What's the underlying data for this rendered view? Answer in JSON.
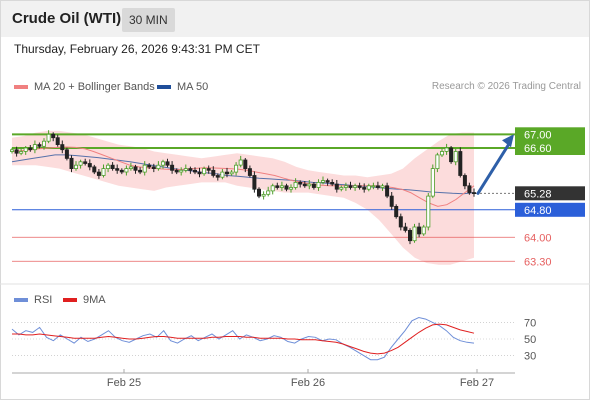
{
  "header": {
    "instrument": "Crude Oil (WTI)",
    "timeframe": "30 MIN",
    "datetime": "Thursday, February 26, 2026 9:43:31 PM CET"
  },
  "legend": {
    "ma20": "MA 20 + Bollinger Bands",
    "ma50": "MA 50",
    "credit": "Research © 2026 Trading Central",
    "rsi": "RSI",
    "rsi_ma": "9MA"
  },
  "colors": {
    "up": "#4d9f2a",
    "ma20": "#f08080",
    "ma50": "#1f4e9a",
    "bollinger": "#fbd6d6",
    "resistance": "#5aa827",
    "pivot": "#2b5fd9",
    "support": "#e66060",
    "last": "#333333",
    "arrow": "#2e5fa8",
    "rsi": "#6f8fd8",
    "rsi_ma": "#e02020"
  },
  "chart_data": [
    {
      "type": "candlestick",
      "title": "Crude Oil (WTI)",
      "timeframe": "30 MIN",
      "ylim": [
        62.9,
        68.0
      ],
      "x_ticks": [
        "Feb 25",
        "Feb 26",
        "Feb 27"
      ],
      "levels": [
        {
          "value": 67.0,
          "label": "67.00",
          "kind": "resistance"
        },
        {
          "value": 66.6,
          "label": "66.60",
          "kind": "resistance"
        },
        {
          "value": 65.28,
          "label": "65.28",
          "kind": "last"
        },
        {
          "value": 64.8,
          "label": "64.80",
          "kind": "pivot"
        },
        {
          "value": 64.0,
          "label": "64.00",
          "kind": "support"
        },
        {
          "value": 63.3,
          "label": "63.30",
          "kind": "support"
        }
      ],
      "projection": {
        "from": 65.28,
        "to": 67.0,
        "direction": "up"
      },
      "close_series": [
        66.55,
        66.45,
        66.5,
        66.6,
        66.55,
        66.7,
        66.65,
        66.8,
        67.0,
        66.9,
        66.7,
        66.55,
        66.3,
        66.0,
        66.1,
        66.2,
        66.15,
        66.05,
        65.9,
        65.8,
        66.0,
        66.1,
        66.0,
        65.95,
        65.9,
        66.0,
        66.05,
        65.95,
        65.9,
        66.1,
        66.05,
        66.0,
        66.1,
        66.2,
        66.1,
        65.95,
        65.9,
        65.95,
        66.0,
        65.95,
        65.9,
        65.85,
        66.0,
        65.95,
        65.8,
        65.75,
        65.9,
        65.85,
        65.9,
        66.1,
        66.25,
        66.0,
        65.8,
        65.4,
        65.2,
        65.25,
        65.35,
        65.5,
        65.45,
        65.5,
        65.4,
        65.45,
        65.6,
        65.55,
        65.5,
        65.55,
        65.45,
        65.6,
        65.65,
        65.6,
        65.55,
        65.4,
        65.45,
        65.5,
        65.45,
        65.5,
        65.45,
        65.4,
        65.5,
        65.5,
        65.45,
        65.5,
        65.2,
        64.9,
        64.6,
        64.3,
        64.2,
        63.9,
        64.3,
        64.1,
        64.3,
        65.2,
        66.0,
        66.4,
        66.5,
        66.6,
        66.2,
        66.5,
        65.8,
        65.5,
        65.3,
        65.28
      ],
      "ma20_series": [
        66.5,
        66.52,
        66.55,
        66.58,
        66.6,
        66.62,
        66.63,
        66.62,
        66.58,
        66.5,
        66.4,
        66.3,
        66.2,
        66.1,
        66.05,
        66.02,
        66.0,
        65.98,
        65.97,
        65.98,
        66.0,
        66.02,
        66.02,
        66.01,
        66.0,
        65.98,
        65.95,
        65.9,
        65.85,
        65.8,
        65.72,
        65.65,
        65.6,
        65.55,
        65.52,
        65.5,
        65.5,
        65.5,
        65.5,
        65.5,
        65.5,
        65.48,
        65.45,
        65.4,
        65.3,
        65.15,
        65.0,
        64.9,
        64.95,
        65.1,
        65.3,
        65.5
      ],
      "ma50_series": [
        66.2,
        66.25,
        66.3,
        66.35,
        66.4,
        66.4,
        66.38,
        66.35,
        66.32,
        66.28,
        66.24,
        66.2,
        66.15,
        66.1,
        66.05,
        66.0,
        65.96,
        65.92,
        65.88,
        65.85,
        65.8,
        65.78,
        65.75,
        65.72,
        65.7,
        65.68,
        65.66,
        65.63,
        65.6,
        65.58,
        65.55,
        65.53,
        65.5,
        65.48,
        65.45,
        65.42,
        65.4,
        65.38,
        65.35,
        65.32,
        65.3,
        65.28,
        65.27,
        65.3
      ],
      "bollinger_upper": [
        66.9,
        66.95,
        67.05,
        67.1,
        67.1,
        67.05,
        67.0,
        66.9,
        66.8,
        66.7,
        66.65,
        66.6,
        66.5,
        66.45,
        66.4,
        66.35,
        66.3,
        66.35,
        66.4,
        66.45,
        66.4,
        66.35,
        66.3,
        66.2,
        66.05,
        65.95,
        65.9,
        65.85,
        65.8,
        65.8,
        65.75,
        65.8,
        65.85,
        66.0,
        66.3,
        66.55,
        66.8,
        67.0,
        67.05,
        67.05
      ],
      "bollinger_lower": [
        66.1,
        66.1,
        66.1,
        66.05,
        66.0,
        65.9,
        65.8,
        65.7,
        65.6,
        65.5,
        65.45,
        65.4,
        65.35,
        65.45,
        65.5,
        65.55,
        65.6,
        65.6,
        65.6,
        65.5,
        65.45,
        65.4,
        65.35,
        65.3,
        65.3,
        65.3,
        65.25,
        65.2,
        65.15,
        65.0,
        64.8,
        64.5,
        64.1,
        63.7,
        63.4,
        63.25,
        63.2,
        63.2,
        63.3,
        63.4
      ]
    },
    {
      "type": "line",
      "title": "RSI",
      "ylim": [
        15,
        85
      ],
      "y_ticks": [
        70,
        50,
        30
      ],
      "x_ticks": [
        "Feb 25",
        "Feb 26",
        "Feb 27"
      ],
      "series": [
        {
          "name": "RSI",
          "values": [
            62,
            55,
            60,
            58,
            64,
            52,
            48,
            55,
            50,
            45,
            52,
            47,
            50,
            55,
            60,
            52,
            48,
            46,
            50,
            54,
            56,
            52,
            60,
            48,
            45,
            50,
            54,
            48,
            52,
            56,
            50,
            55,
            60,
            50,
            55,
            52,
            48,
            50,
            54,
            52,
            47,
            45,
            50,
            53,
            52,
            48,
            50,
            49,
            44,
            40,
            35,
            30,
            25,
            25,
            28,
            40,
            50,
            60,
            72,
            76,
            74,
            70,
            66,
            60,
            52,
            48,
            46,
            45
          ]
        },
        {
          "name": "9MA",
          "values": [
            56,
            56,
            55,
            55,
            56,
            55,
            54,
            53,
            52,
            51,
            51,
            51,
            51,
            52,
            53,
            52,
            51,
            50,
            50,
            51,
            52,
            53,
            53,
            52,
            51,
            51,
            51,
            51,
            51,
            52,
            52,
            53,
            53,
            53,
            52,
            52,
            51,
            51,
            51,
            51,
            50,
            50,
            49,
            49,
            49,
            48,
            47,
            46,
            44,
            41,
            38,
            35,
            33,
            32,
            33,
            36,
            40,
            46,
            52,
            58,
            63,
            67,
            68,
            67,
            64,
            61,
            59,
            57
          ]
        }
      ]
    }
  ]
}
